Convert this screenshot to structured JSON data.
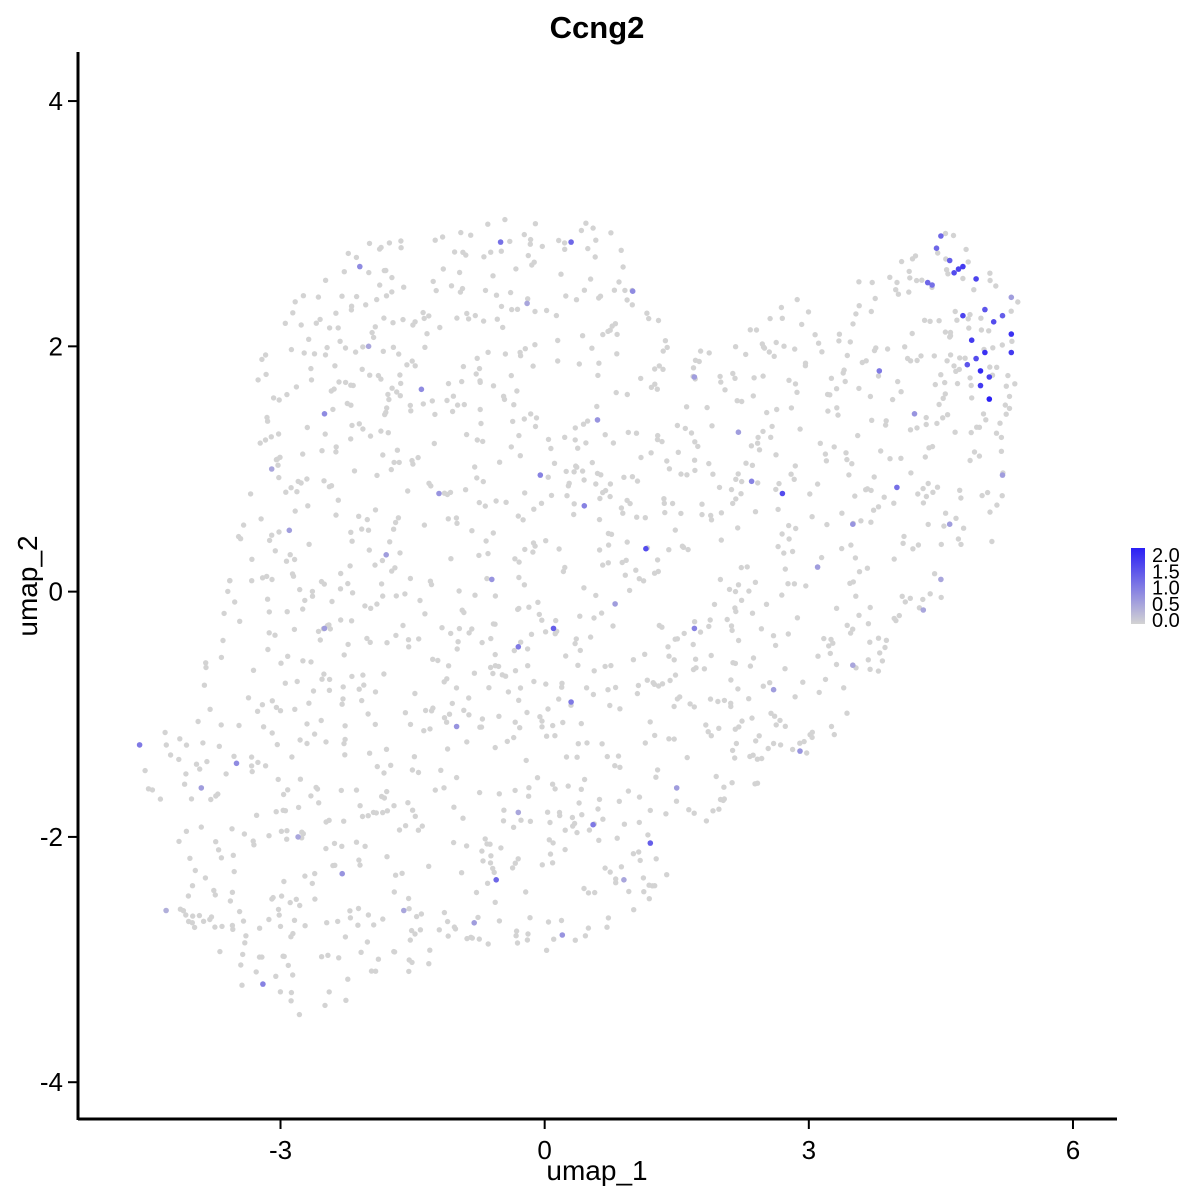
{
  "chart_data": {
    "type": "scatter",
    "title": "Ccng2",
    "xlabel": "umap_1",
    "ylabel": "umap_2",
    "xlim": [
      -5.3,
      6.5
    ],
    "ylim": [
      -4.3,
      4.4
    ],
    "x_ticks": [
      -3,
      0,
      3,
      6
    ],
    "x_tick_labels": [
      "-3",
      "0",
      "3",
      "6"
    ],
    "y_ticks": [
      -4,
      -2,
      0,
      2,
      4
    ],
    "y_tick_labels": [
      "-4",
      "-2",
      "0",
      "2",
      "4"
    ],
    "grid": false,
    "legend_position": "right",
    "color_scale": {
      "low_color": "#d3d3d3",
      "high_color": "#2a1ff5",
      "min": 0.0,
      "max": 2.0,
      "labels": [
        "2.0",
        "1.5",
        "1.0",
        "0.5",
        "0.0"
      ],
      "values": [
        2.0,
        1.5,
        1.0,
        0.5,
        0.0
      ]
    },
    "points": [
      {
        "x": 5.05,
        "y": 1.57,
        "v": 2.0
      },
      {
        "x": 5.3,
        "y": 2.1,
        "v": 1.8
      },
      {
        "x": 5.3,
        "y": 1.95,
        "v": 1.7
      },
      {
        "x": 4.95,
        "y": 1.8,
        "v": 1.9
      },
      {
        "x": 5.0,
        "y": 1.95,
        "v": 1.8
      },
      {
        "x": 4.85,
        "y": 2.05,
        "v": 1.7
      },
      {
        "x": 4.75,
        "y": 2.25,
        "v": 1.6
      },
      {
        "x": 4.7,
        "y": 2.63,
        "v": 1.6
      },
      {
        "x": 4.65,
        "y": 2.6,
        "v": 1.5
      },
      {
        "x": 4.75,
        "y": 2.65,
        "v": 1.7
      },
      {
        "x": 4.9,
        "y": 2.55,
        "v": 1.6
      },
      {
        "x": 4.95,
        "y": 1.68,
        "v": 1.7
      },
      {
        "x": 5.05,
        "y": 1.75,
        "v": 1.6
      },
      {
        "x": 5.1,
        "y": 2.2,
        "v": 1.5
      },
      {
        "x": 5.2,
        "y": 2.25,
        "v": 1.3
      },
      {
        "x": 5.0,
        "y": 2.3,
        "v": 1.4
      },
      {
        "x": 4.9,
        "y": 1.9,
        "v": 1.5
      },
      {
        "x": 4.6,
        "y": 2.7,
        "v": 1.3
      },
      {
        "x": 4.5,
        "y": 2.9,
        "v": 1.2
      },
      {
        "x": 4.4,
        "y": 2.5,
        "v": 1.1
      },
      {
        "x": 4.8,
        "y": 1.85,
        "v": 1.4
      },
      {
        "x": 4.45,
        "y": 2.8,
        "v": 1.2
      },
      {
        "x": 4.35,
        "y": 2.52,
        "v": 1.2
      },
      {
        "x": 2.7,
        "y": 0.8,
        "v": 1.5
      },
      {
        "x": 1.15,
        "y": 0.35,
        "v": 1.5
      },
      {
        "x": 0.1,
        "y": -0.3,
        "v": 1.3
      },
      {
        "x": -0.55,
        "y": -2.35,
        "v": 1.2
      },
      {
        "x": 1.2,
        "y": -2.05,
        "v": 1.3
      },
      {
        "x": 0.3,
        "y": 2.85,
        "v": 1.2
      },
      {
        "x": -0.5,
        "y": 2.85,
        "v": 1.1
      },
      {
        "x": 0.55,
        "y": -1.9,
        "v": 1.0
      },
      {
        "x": 4.0,
        "y": 0.85,
        "v": 1.1
      },
      {
        "x": 3.8,
        "y": 1.8,
        "v": 1.0
      },
      {
        "x": -4.6,
        "y": -1.25,
        "v": 1.0
      },
      {
        "x": -3.2,
        "y": -3.2,
        "v": 0.9
      },
      {
        "x": -0.05,
        "y": 0.95,
        "v": 0.9
      },
      {
        "x": 0.45,
        "y": 0.7,
        "v": 0.9
      },
      {
        "x": -0.3,
        "y": -0.45,
        "v": 1.0
      },
      {
        "x": 0.3,
        "y": -0.9,
        "v": 1.0
      },
      {
        "x": -2.5,
        "y": 1.45,
        "v": 0.8
      },
      {
        "x": -1.4,
        "y": 1.65,
        "v": 0.8
      },
      {
        "x": -2.1,
        "y": 2.65,
        "v": 0.8
      },
      {
        "x": 1.0,
        "y": 2.45,
        "v": 0.8
      },
      {
        "x": -3.5,
        "y": -1.4,
        "v": 0.8
      },
      {
        "x": -2.3,
        "y": -2.3,
        "v": 0.7
      },
      {
        "x": -1.2,
        "y": 0.8,
        "v": 0.7
      },
      {
        "x": 0.6,
        "y": 1.4,
        "v": 0.7
      },
      {
        "x": 1.7,
        "y": -0.3,
        "v": 0.9
      },
      {
        "x": 2.35,
        "y": 0.9,
        "v": 0.9
      },
      {
        "x": 2.9,
        "y": -1.3,
        "v": 0.7
      },
      {
        "x": 3.5,
        "y": 0.55,
        "v": 0.7
      },
      {
        "x": 4.2,
        "y": 1.45,
        "v": 0.7
      },
      {
        "x": -1.0,
        "y": -1.1,
        "v": 0.7
      },
      {
        "x": -0.8,
        "y": -2.7,
        "v": 0.6
      },
      {
        "x": 0.2,
        "y": -2.8,
        "v": 0.7
      },
      {
        "x": 1.5,
        "y": -1.6,
        "v": 0.6
      },
      {
        "x": -2.9,
        "y": 0.5,
        "v": 0.6
      },
      {
        "x": -3.9,
        "y": -1.6,
        "v": 0.6
      },
      {
        "x": -2.5,
        "y": -0.3,
        "v": 0.6
      },
      {
        "x": -1.8,
        "y": 0.3,
        "v": 0.6
      },
      {
        "x": -0.6,
        "y": 0.1,
        "v": 0.7
      },
      {
        "x": 0.8,
        "y": -0.1,
        "v": 0.6
      },
      {
        "x": 2.2,
        "y": 1.3,
        "v": 0.6
      },
      {
        "x": 3.1,
        "y": 0.2,
        "v": 0.6
      },
      {
        "x": 4.6,
        "y": 0.55,
        "v": 0.6
      },
      {
        "x": 5.2,
        "y": 0.95,
        "v": 0.6
      },
      {
        "x": -3.1,
        "y": 1.0,
        "v": 0.5
      },
      {
        "x": -2.0,
        "y": 2.0,
        "v": 0.5
      },
      {
        "x": -0.2,
        "y": 2.35,
        "v": 0.5
      },
      {
        "x": 1.7,
        "y": 1.75,
        "v": 0.6
      },
      {
        "x": 2.6,
        "y": -0.8,
        "v": 0.6
      },
      {
        "x": 3.5,
        "y": -0.6,
        "v": 0.5
      },
      {
        "x": -1.6,
        "y": -2.6,
        "v": 0.5
      },
      {
        "x": -2.8,
        "y": -2.0,
        "v": 0.5
      },
      {
        "x": 0.9,
        "y": -2.35,
        "v": 0.5
      },
      {
        "x": -0.3,
        "y": -1.8,
        "v": 0.5
      },
      {
        "x": -4.3,
        "y": -2.6,
        "v": 0.4
      },
      {
        "x": 4.5,
        "y": 0.1,
        "v": 0.5
      },
      {
        "x": 5.3,
        "y": 2.4,
        "v": 0.6
      },
      {
        "x": 4.3,
        "y": -0.15,
        "v": 0.5
      }
    ],
    "background_points": {
      "v": 0.0,
      "note_regions": []
    }
  }
}
